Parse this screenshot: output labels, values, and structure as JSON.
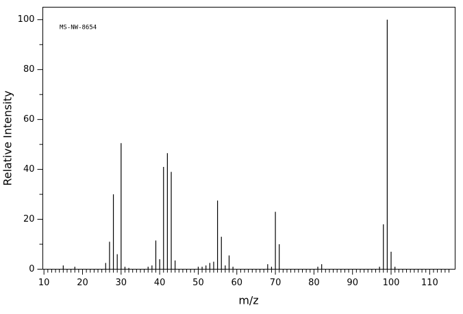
{
  "chart_data": {
    "type": "stem",
    "annotation": "MS-NW-8654",
    "xlabel": "m/z",
    "ylabel": "Relative Intensity",
    "x": [
      15,
      18,
      26,
      27,
      28,
      29,
      30,
      31,
      32,
      37,
      38,
      39,
      40,
      41,
      42,
      43,
      44,
      50,
      51,
      52,
      53,
      54,
      55,
      56,
      57,
      58,
      59,
      68,
      69,
      70,
      71,
      81,
      82,
      97,
      98,
      99,
      100,
      101
    ],
    "values": [
      1.5,
      1,
      2.5,
      11,
      30,
      6,
      50.5,
      1,
      0.5,
      1,
      1.5,
      11.5,
      4,
      41,
      46.5,
      39,
      3.5,
      1,
      1,
      1.5,
      2.5,
      3,
      27.5,
      13,
      1.5,
      5.5,
      1,
      2,
      1,
      23,
      10,
      1,
      2,
      1,
      18,
      100,
      7,
      1
    ],
    "color": "#000000",
    "xlim": [
      9.7,
      116.6
    ],
    "ylim": [
      0,
      105
    ],
    "xticks": [
      10,
      20,
      30,
      40,
      50,
      60,
      70,
      80,
      90,
      100,
      110
    ],
    "xminorticks": [
      11,
      12,
      13,
      14,
      15,
      16,
      17,
      18,
      19,
      21,
      22,
      23,
      24,
      25,
      26,
      27,
      28,
      29,
      31,
      32,
      33,
      34,
      35,
      36,
      37,
      38,
      39,
      41,
      42,
      43,
      44,
      45,
      46,
      47,
      48,
      49,
      51,
      52,
      53,
      54,
      55,
      56,
      57,
      58,
      59,
      61,
      62,
      63,
      64,
      65,
      66,
      67,
      68,
      69,
      71,
      72,
      73,
      74,
      75,
      76,
      77,
      78,
      79,
      81,
      82,
      83,
      84,
      85,
      86,
      87,
      88,
      89,
      91,
      92,
      93,
      94,
      95,
      96,
      97,
      98,
      99,
      101,
      102,
      103,
      104,
      105,
      106,
      107,
      108,
      109,
      111,
      112,
      113,
      114,
      115
    ],
    "yticks": [
      0,
      20,
      40,
      60,
      80,
      100
    ],
    "yminorticks": [
      10,
      30,
      50,
      70,
      90
    ]
  }
}
